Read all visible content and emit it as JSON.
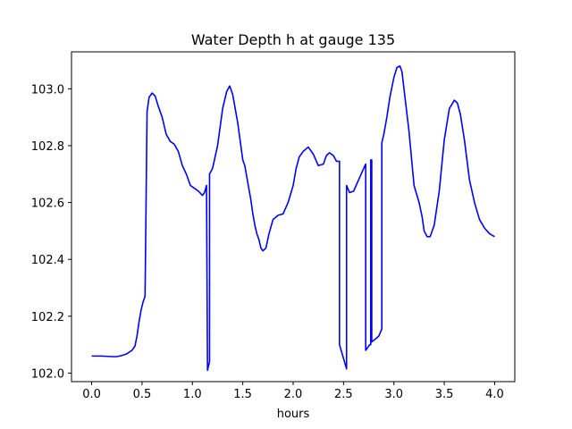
{
  "chart_data": {
    "type": "line",
    "title": "Water Depth h at gauge 135",
    "xlabel": "hours",
    "ylabel": "",
    "xlim": [
      -0.2,
      4.2
    ],
    "ylim": [
      101.97,
      103.13
    ],
    "xticks": [
      0.0,
      0.5,
      1.0,
      1.5,
      2.0,
      2.5,
      3.0,
      3.5,
      4.0
    ],
    "xtick_labels": [
      "0.0",
      "0.5",
      "1.0",
      "1.5",
      "2.0",
      "2.5",
      "3.0",
      "3.5",
      "4.0"
    ],
    "yticks": [
      102.0,
      102.2,
      102.4,
      102.6,
      102.8,
      103.0
    ],
    "ytick_labels": [
      "102.0",
      "102.2",
      "102.4",
      "102.6",
      "102.8",
      "103.0"
    ],
    "grid": false,
    "line_color": "#0000ff",
    "series": [
      {
        "x": [
          0.0,
          0.1,
          0.2,
          0.25,
          0.3,
          0.35,
          0.4,
          0.43,
          0.45,
          0.47,
          0.49,
          0.51,
          0.53,
          0.55,
          0.55,
          0.57,
          0.6,
          0.63,
          0.66,
          0.7,
          0.74,
          0.78,
          0.82,
          0.86,
          0.9,
          0.94,
          0.98,
          1.02,
          1.06,
          1.1,
          1.12,
          1.14,
          1.15,
          1.15,
          1.17,
          1.17,
          1.2,
          1.25,
          1.3,
          1.34,
          1.37,
          1.4,
          1.42,
          1.45,
          1.5,
          1.52,
          1.55,
          1.58,
          1.6,
          1.62,
          1.64,
          1.66,
          1.68,
          1.7,
          1.73,
          1.76,
          1.8,
          1.85,
          1.9,
          1.95,
          2.0,
          2.03,
          2.06,
          2.1,
          2.15,
          2.2,
          2.25,
          2.3,
          2.33,
          2.36,
          2.4,
          2.43,
          2.46,
          2.46,
          2.53,
          2.53,
          2.56,
          2.6,
          2.65,
          2.7,
          2.72,
          2.72,
          2.76,
          2.77,
          2.77,
          2.78,
          2.78,
          2.8,
          2.85,
          2.88,
          2.88,
          2.9,
          2.93,
          2.96,
          3.0,
          3.03,
          3.06,
          3.08,
          3.1,
          3.15,
          3.2,
          3.25,
          3.28,
          3.3,
          3.33,
          3.36,
          3.4,
          3.45,
          3.5,
          3.55,
          3.6,
          3.63,
          3.66,
          3.7,
          3.75,
          3.8,
          3.85,
          3.9,
          3.95,
          4.0
        ],
        "y": [
          102.06,
          102.06,
          102.058,
          102.058,
          102.062,
          102.068,
          102.08,
          102.095,
          102.13,
          102.18,
          102.22,
          102.25,
          102.27,
          102.92,
          102.92,
          102.97,
          102.985,
          102.975,
          102.94,
          102.9,
          102.84,
          102.815,
          102.805,
          102.78,
          102.73,
          102.7,
          102.66,
          102.65,
          102.64,
          102.625,
          102.635,
          102.66,
          102.01,
          102.01,
          102.04,
          102.7,
          102.72,
          102.8,
          102.93,
          102.99,
          103.01,
          102.98,
          102.94,
          102.88,
          102.75,
          102.73,
          102.67,
          102.61,
          102.56,
          102.52,
          102.49,
          102.47,
          102.44,
          102.43,
          102.44,
          102.49,
          102.54,
          102.555,
          102.56,
          102.6,
          102.66,
          102.72,
          102.76,
          102.78,
          102.795,
          102.77,
          102.73,
          102.735,
          102.765,
          102.775,
          102.765,
          102.745,
          102.745,
          102.1,
          102.015,
          102.66,
          102.635,
          102.64,
          102.68,
          102.72,
          102.735,
          102.08,
          102.1,
          102.1,
          102.75,
          102.75,
          102.11,
          102.115,
          102.13,
          102.155,
          102.81,
          102.84,
          102.9,
          102.97,
          103.04,
          103.075,
          103.08,
          103.06,
          103.0,
          102.85,
          102.66,
          102.6,
          102.55,
          102.5,
          102.48,
          102.48,
          102.52,
          102.64,
          102.82,
          102.93,
          102.96,
          102.95,
          102.91,
          102.82,
          102.68,
          102.6,
          102.54,
          102.51,
          102.49,
          102.48
        ]
      }
    ]
  }
}
